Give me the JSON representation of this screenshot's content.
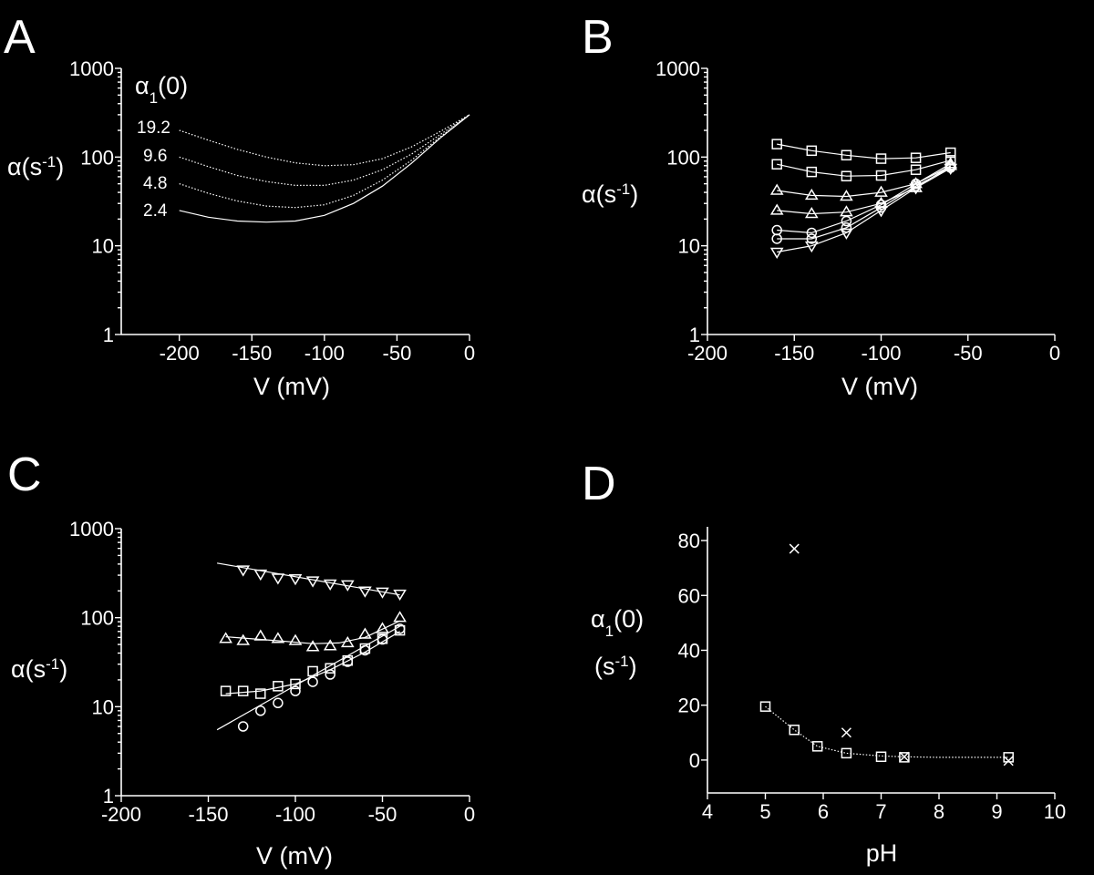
{
  "chart_data": [
    {
      "panel": "A",
      "type": "line",
      "xlabel": "V (mV)",
      "ylabel": "α(s-1)",
      "xlim": [
        -240,
        0
      ],
      "ylim": [
        1,
        1000
      ],
      "yscale": "log",
      "xticks": [
        -200,
        -150,
        -100,
        -50,
        0
      ],
      "yticks": [
        1,
        10,
        100,
        1000
      ],
      "legend_title": "α1(0)",
      "series": [
        {
          "name": "19.2",
          "x": [
            -200,
            -180,
            -160,
            -140,
            -120,
            -100,
            -80,
            -60,
            -40,
            -20,
            0
          ],
          "y": [
            200,
            155,
            122,
            100,
            86,
            80,
            82,
            96,
            130,
            195,
            300
          ]
        },
        {
          "name": "9.6",
          "x": [
            -200,
            -180,
            -160,
            -140,
            -120,
            -100,
            -80,
            -60,
            -40,
            -20,
            0
          ],
          "y": [
            100,
            78,
            62,
            53,
            48,
            48,
            55,
            72,
            108,
            180,
            300
          ]
        },
        {
          "name": "4.8",
          "x": [
            -200,
            -180,
            -160,
            -140,
            -120,
            -100,
            -80,
            -60,
            -40,
            -20,
            0
          ],
          "y": [
            50,
            39,
            32,
            28,
            27,
            29,
            37,
            55,
            92,
            170,
            300
          ]
        },
        {
          "name": "2.4",
          "x": [
            -200,
            -180,
            -160,
            -140,
            -120,
            -100,
            -80,
            -60,
            -40,
            -20,
            0
          ],
          "y": [
            25,
            21,
            19,
            18.5,
            19,
            22,
            30,
            47,
            85,
            165,
            300
          ]
        }
      ]
    },
    {
      "panel": "B",
      "type": "scatter",
      "xlabel": "V (mV)",
      "ylabel": "α(s-1)",
      "xlim": [
        -200,
        0
      ],
      "ylim": [
        1,
        1000
      ],
      "yscale": "log",
      "xticks": [
        -200,
        -150,
        -100,
        -50,
        0
      ],
      "yticks": [
        1,
        10,
        100,
        1000
      ],
      "series": [
        {
          "marker": "square-open",
          "x": [
            -160,
            -140,
            -120,
            -100,
            -80,
            -60
          ],
          "y": [
            140,
            118,
            105,
            96,
            98,
            112
          ]
        },
        {
          "marker": "square-filled",
          "x": [
            -160,
            -140,
            -120,
            -100,
            -80,
            -60
          ],
          "y": [
            83,
            68,
            61,
            62,
            72,
            92
          ]
        },
        {
          "marker": "triangle-open",
          "x": [
            -160,
            -140,
            -120,
            -100,
            -80,
            -60
          ],
          "y": [
            42,
            37,
            36,
            40,
            50,
            84
          ]
        },
        {
          "marker": "triangle-filled",
          "x": [
            -160,
            -140,
            -120,
            -100,
            -80,
            -60
          ],
          "y": [
            25,
            23,
            24,
            30,
            45,
            80
          ]
        },
        {
          "marker": "circle-open",
          "x": [
            -160,
            -140,
            -120,
            -100,
            -80,
            -60
          ],
          "y": [
            15,
            14,
            19,
            29,
            50,
            79
          ]
        },
        {
          "marker": "circle-filled",
          "x": [
            -160,
            -140,
            -120,
            -100,
            -80,
            -60
          ],
          "y": [
            12,
            12,
            16,
            27,
            47,
            76
          ]
        },
        {
          "marker": "triangle-down-open",
          "x": [
            -160,
            -140,
            -120,
            -100,
            -80,
            -60
          ],
          "y": [
            8.5,
            10,
            14,
            25,
            45,
            75
          ]
        }
      ]
    },
    {
      "panel": "C",
      "type": "scatter",
      "xlabel": "V (mV)",
      "ylabel": "α(s-1)",
      "xlim": [
        -200,
        0
      ],
      "ylim": [
        1,
        1000
      ],
      "yscale": "log",
      "xticks": [
        -200,
        -150,
        -100,
        -50,
        0
      ],
      "yticks": [
        1,
        10,
        100,
        1000
      ],
      "series": [
        {
          "marker": "triangle-down-open",
          "x": [
            -130,
            -120,
            -110,
            -100,
            -90,
            -80,
            -70,
            -60,
            -50,
            -40
          ],
          "y": [
            345,
            310,
            280,
            275,
            260,
            240,
            235,
            200,
            195,
            185
          ]
        },
        {
          "marker": "triangle-open",
          "x": [
            -140,
            -130,
            -120,
            -110,
            -100,
            -90,
            -80,
            -70,
            -60,
            -50,
            -40
          ],
          "y": [
            58,
            55,
            62,
            58,
            55,
            47,
            48,
            52,
            65,
            75,
            100
          ]
        },
        {
          "marker": "square-open",
          "x": [
            -140,
            -130,
            -120,
            -110,
            -100,
            -90,
            -80,
            -70,
            -60,
            -50,
            -40
          ],
          "y": [
            15,
            15,
            14,
            17,
            18,
            25,
            27,
            33,
            45,
            58,
            72
          ]
        },
        {
          "marker": "circle-open",
          "x": [
            -130,
            -120,
            -110,
            -100,
            -90,
            -80,
            -70,
            -60,
            -50,
            -40
          ],
          "y": [
            6,
            9,
            11,
            15,
            19,
            23,
            32,
            43,
            57,
            75
          ]
        }
      ],
      "fit_lines": [
        {
          "x": [
            -145,
            -40
          ],
          "y": [
            410,
            180
          ]
        },
        {
          "x": [
            -140,
            -110,
            -90,
            -75,
            -60,
            -40
          ],
          "y": [
            61,
            55,
            51,
            52,
            60,
            92
          ]
        },
        {
          "x": [
            -140,
            -120,
            -100,
            -80,
            -60,
            -40
          ],
          "y": [
            14,
            15,
            18,
            26,
            41,
            70
          ]
        },
        {
          "x": [
            -145,
            -40
          ],
          "y": [
            5.5,
            80
          ]
        }
      ]
    },
    {
      "panel": "D",
      "type": "scatter",
      "xlabel": "pH",
      "ylabel": "α1(0) (s-1)",
      "xlim": [
        4,
        10
      ],
      "ylim": [
        -12,
        85
      ],
      "xticks": [
        4,
        5,
        6,
        7,
        8,
        9,
        10
      ],
      "yticks": [
        0,
        20,
        40,
        60,
        80
      ],
      "series": [
        {
          "marker": "square-open",
          "x": [
            5.0,
            5.5,
            5.9,
            6.4,
            7.0,
            7.4,
            9.2
          ],
          "y": [
            19.5,
            11,
            5,
            2.5,
            1.2,
            1.0,
            1.0
          ]
        },
        {
          "marker": "cross",
          "x": [
            5.5,
            6.4,
            7.4,
            9.2
          ],
          "y": [
            77,
            10,
            1.2,
            -0.3
          ]
        }
      ],
      "fit_line": {
        "x": [
          5.0,
          5.5,
          5.9,
          6.4,
          7.0,
          7.4,
          8.0,
          9.2
        ],
        "y": [
          19.5,
          11,
          5,
          2.5,
          1.5,
          1.2,
          1.0,
          1.0
        ]
      }
    }
  ],
  "labels": {
    "A": {
      "letter": "A",
      "ylabel_main": "α(s",
      "ylabel_sup": "-1",
      "ylabel_end": ")",
      "xlabel": "V (mV)",
      "legend_main": "α",
      "legend_sub": "1",
      "legend_end": "(0)",
      "curves": [
        "19.2",
        "9.6",
        "4.8",
        "2.4"
      ],
      "xticks": [
        "-200",
        "-150",
        "-100",
        "-50",
        "0"
      ],
      "yticks": [
        "1",
        "10",
        "100",
        "1000"
      ]
    },
    "B": {
      "letter": "B",
      "ylabel_main": "α(s",
      "ylabel_sup": "-1",
      "ylabel_end": ")",
      "xlabel": "V (mV)",
      "xticks": [
        "-200",
        "-150",
        "-100",
        "-50",
        "0"
      ],
      "yticks": [
        "1",
        "10",
        "100",
        "1000"
      ]
    },
    "C": {
      "letter": "C",
      "ylabel_main": "α(s",
      "ylabel_sup": "-1",
      "ylabel_end": ")",
      "xlabel": "V (mV)",
      "xticks": [
        "-200",
        "-150",
        "-100",
        "-50",
        "0"
      ],
      "yticks": [
        "1",
        "10",
        "100",
        "1000"
      ]
    },
    "D": {
      "letter": "D",
      "ylabel_main": "α",
      "ylabel_sub": "1",
      "ylabel_end": "(0)",
      "ylabel_unit_main": "(s",
      "ylabel_unit_sup": "-1",
      "ylabel_unit_end": ")",
      "xlabel": "pH",
      "xticks": [
        "4",
        "5",
        "6",
        "7",
        "8",
        "9",
        "10"
      ],
      "yticks": [
        "0",
        "20",
        "40",
        "60",
        "80"
      ]
    }
  }
}
